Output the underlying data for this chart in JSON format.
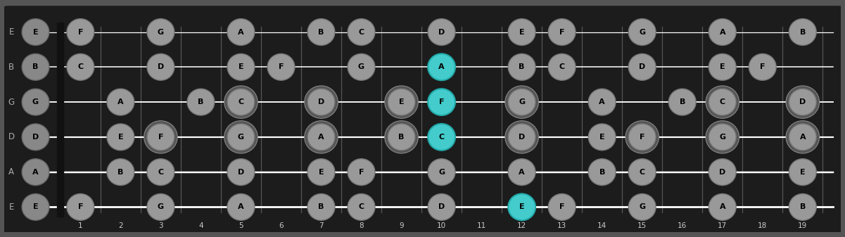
{
  "bg_color": "#1c1c1c",
  "outer_bg": "#555555",
  "string_names": [
    "E",
    "B",
    "G",
    "D",
    "A",
    "E"
  ],
  "num_frets": 19,
  "string_color": "#ffffff",
  "fret_color": "#555555",
  "note_fill": "#999999",
  "note_edge": "#777777",
  "note_text": "#000000",
  "highlight_fill": "#44cccc",
  "highlight_edge": "#22aaaa",
  "highlight_text": "#000000",
  "open_fill": "#888888",
  "open_edge": "#666666",
  "label_color": "#aaaaaa",
  "fret_label_color": "#cccccc",
  "open_notes": [
    "E",
    "B",
    "G",
    "D",
    "A",
    "E"
  ],
  "notes_per_string": {
    "0": {
      "1": "F",
      "3": "G",
      "5": "A",
      "7": "B",
      "8": "C",
      "10": "D",
      "12": "E",
      "13": "F",
      "15": "G",
      "17": "A",
      "19": "B"
    },
    "1": {
      "1": "C",
      "3": "D",
      "5": "E",
      "6": "F",
      "8": "G",
      "10": "A",
      "12": "B",
      "13": "C",
      "15": "D",
      "17": "E",
      "18": "F"
    },
    "2": {
      "2": "A",
      "4": "B",
      "5": "C",
      "7": "D",
      "9": "E",
      "10": "F",
      "12": "G",
      "14": "A",
      "16": "B",
      "17": "C",
      "19": "D"
    },
    "3": {
      "2": "E",
      "3": "F",
      "5": "G",
      "7": "A",
      "9": "B",
      "10": "C",
      "12": "D",
      "14": "E",
      "15": "F",
      "17": "G",
      "19": "A"
    },
    "4": {
      "2": "B",
      "3": "C",
      "5": "D",
      "7": "E",
      "8": "F",
      "10": "G",
      "12": "A",
      "14": "B",
      "15": "C",
      "17": "D",
      "19": "E"
    },
    "5": {
      "1": "F",
      "3": "G",
      "5": "A",
      "7": "B",
      "8": "C",
      "10": "D",
      "12": "E",
      "13": "F",
      "15": "G",
      "17": "A",
      "19": "B"
    }
  },
  "highlighted": [
    {
      "string": 1,
      "fret": 10,
      "note": "A"
    },
    {
      "string": 2,
      "fret": 10,
      "note": "F"
    },
    {
      "string": 3,
      "fret": 10,
      "note": "C"
    },
    {
      "string": 5,
      "fret": 12,
      "note": "E"
    }
  ],
  "double_circle_frets": [
    3,
    5,
    7,
    9,
    12,
    15,
    17,
    19
  ]
}
